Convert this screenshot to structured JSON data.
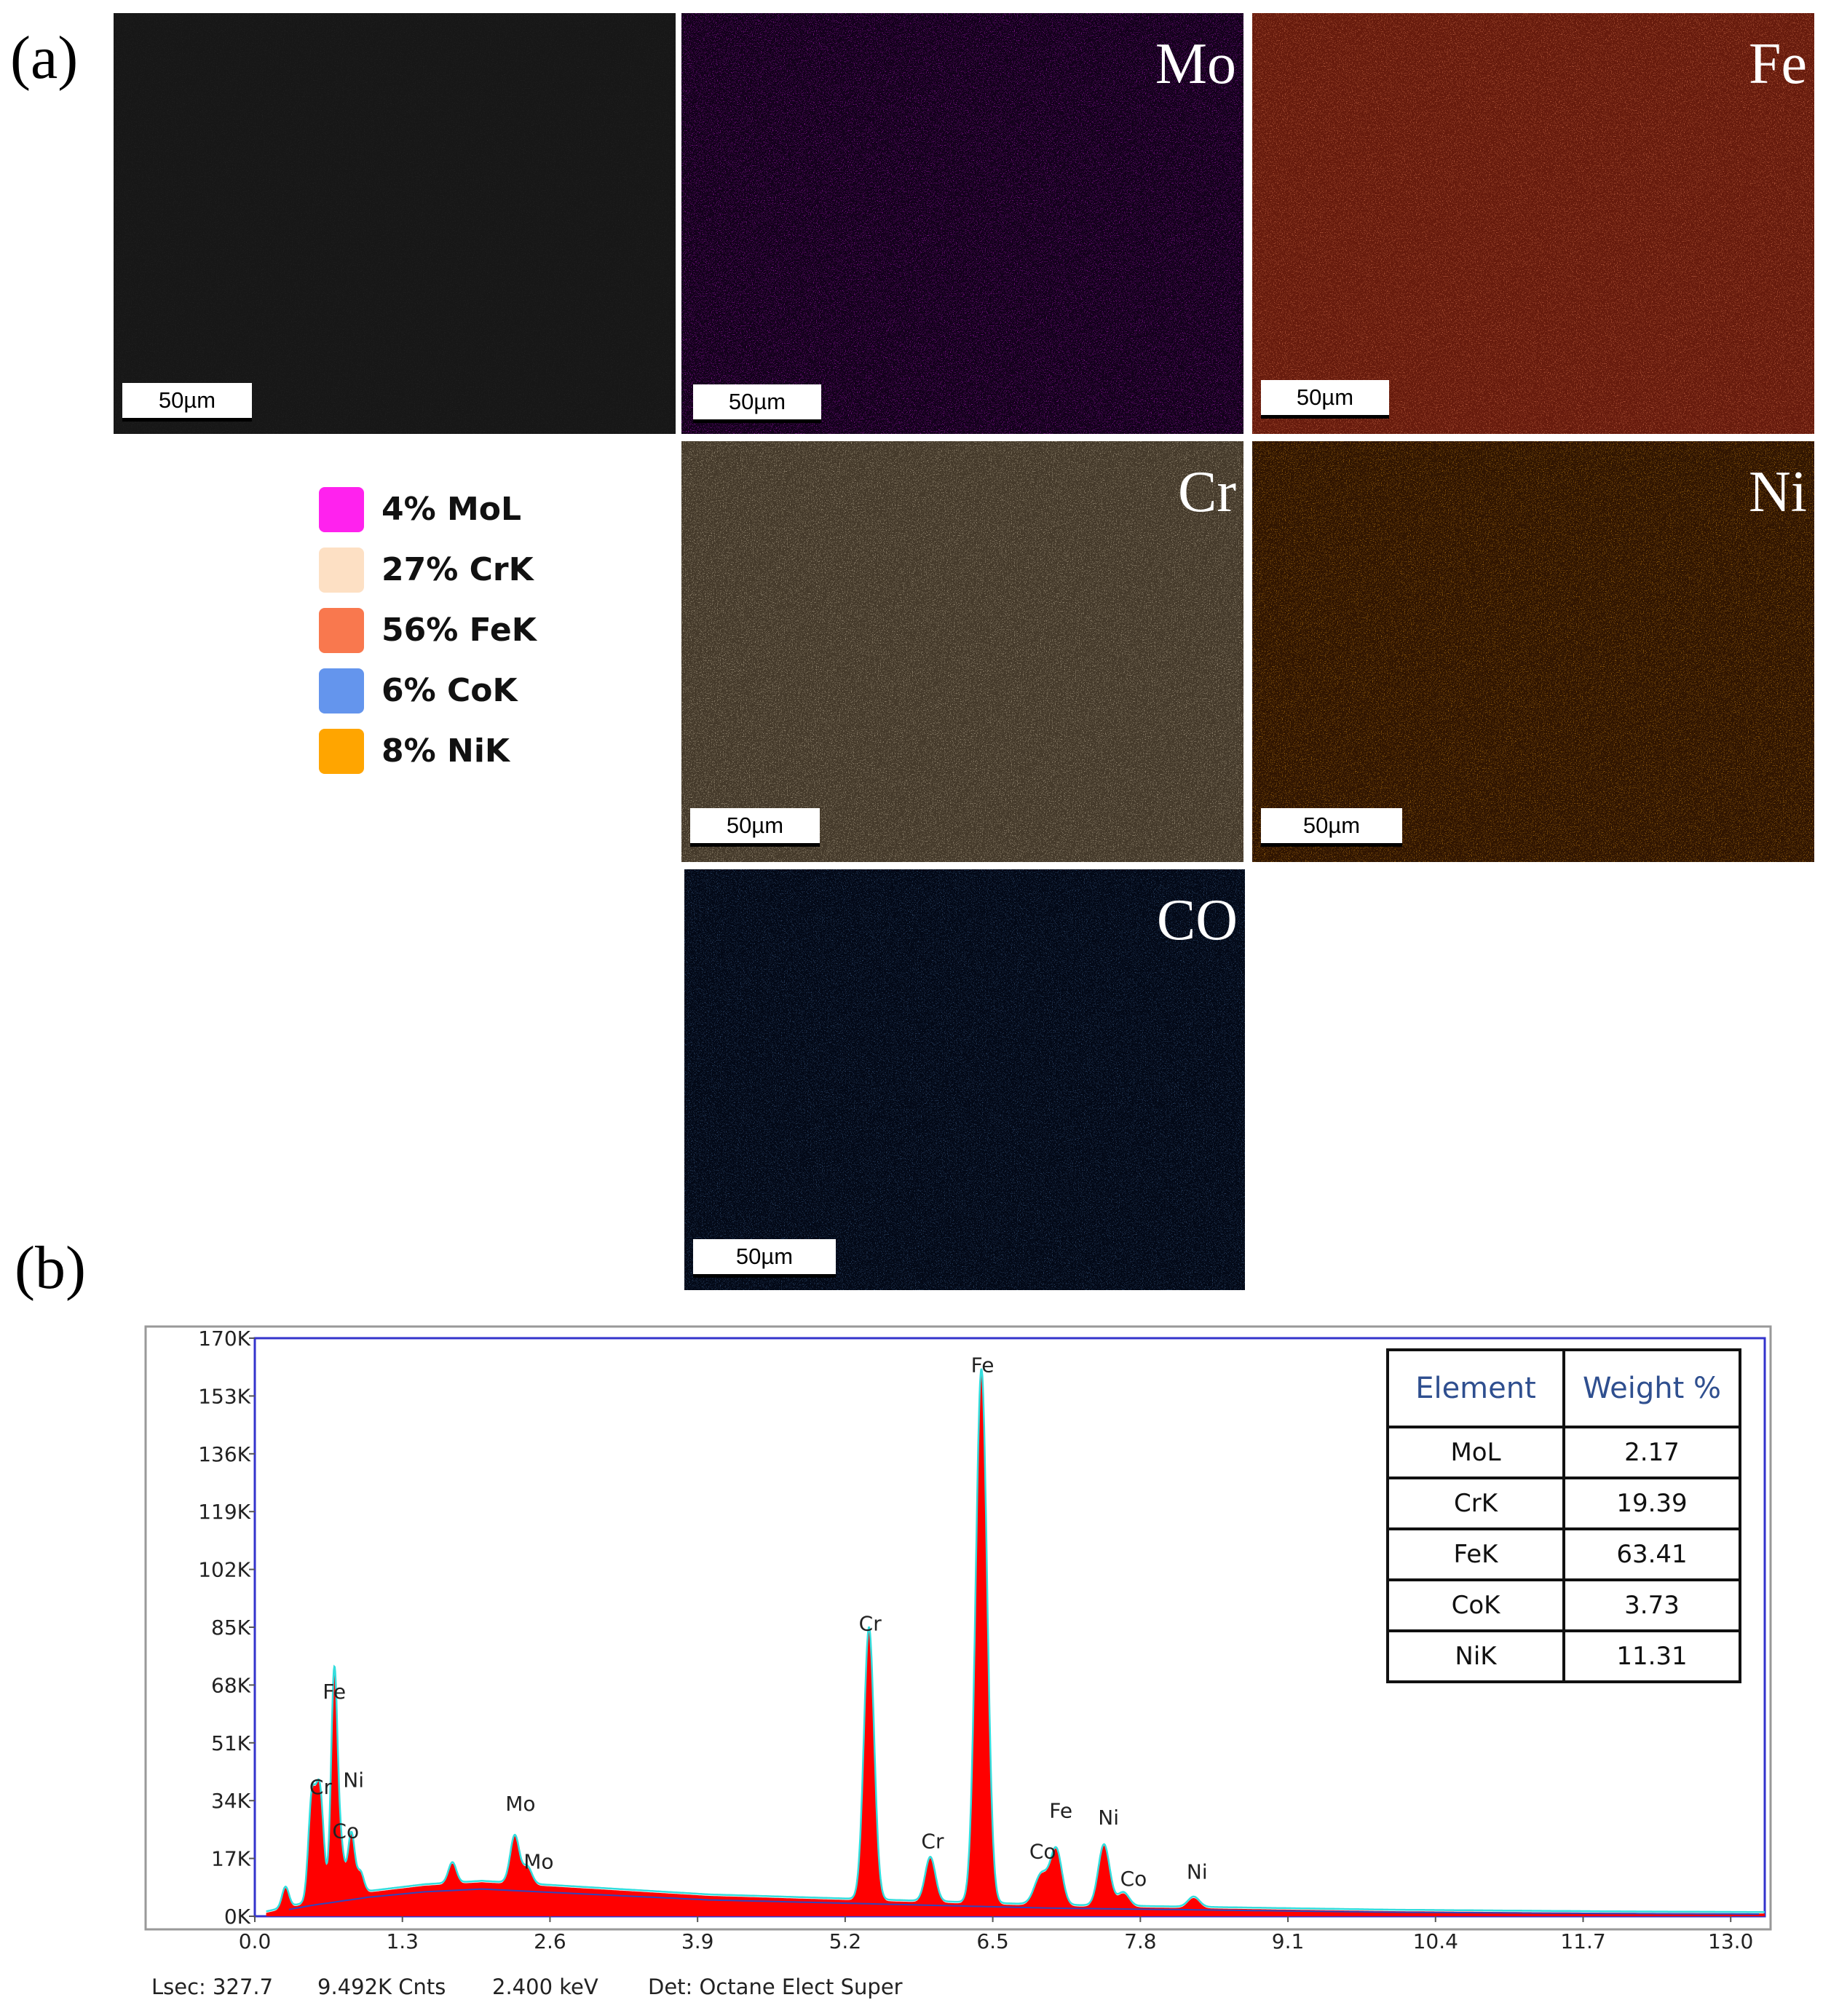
{
  "panel_a": {
    "letter": "(a)",
    "maps": [
      {
        "id": "sem",
        "label": "",
        "scale": "50µm",
        "base": "#4a4a4a",
        "hi": "#5e5e5e",
        "lo": "#3d3d3d"
      },
      {
        "id": "mo",
        "label": "Mo",
        "scale": "50µm",
        "base": "#3a0a4a",
        "hi": "#b21ac6",
        "lo": "#1a0422"
      },
      {
        "id": "fe",
        "label": "Fe",
        "scale": "50µm",
        "base": "#a4533a",
        "hi": "#d77653",
        "lo": "#7a3a26"
      },
      {
        "id": "cr",
        "label": "Cr",
        "scale": "50µm",
        "base": "#8a8070",
        "hi": "#c2b59c",
        "lo": "#5a5246"
      },
      {
        "id": "ni",
        "label": "Ni",
        "scale": "50µm",
        "base": "#5a3c0a",
        "hi": "#d08a14",
        "lo": "#3a2606"
      },
      {
        "id": "co",
        "label": "CO",
        "scale": "50µm",
        "base": "#16243c",
        "hi": "#3f6290",
        "lo": "#0c1628"
      }
    ],
    "legend": [
      {
        "text": "4% MoL",
        "color": "#ff22ee"
      },
      {
        "text": "27% CrK",
        "color": "#fde0c4"
      },
      {
        "text": "56% FeK",
        "color": "#f9784e"
      },
      {
        "text": "6% CoK",
        "color": "#6495ed"
      },
      {
        "text": "8% NiK",
        "color": "#ffa500"
      }
    ]
  },
  "panel_b": {
    "letter": "(b)",
    "table": {
      "headers": [
        "Element",
        "Weight %"
      ],
      "rows": [
        [
          "MoL",
          "2.17"
        ],
        [
          "CrK",
          "19.39"
        ],
        [
          "FeK",
          "63.41"
        ],
        [
          "CoK",
          "3.73"
        ],
        [
          "NiK",
          "11.31"
        ]
      ]
    },
    "footer": {
      "lsec": "Lsec: 327.7",
      "cnts": "9.492K Cnts",
      "kev": "2.400 keV",
      "det": "Det: Octane Elect Super"
    }
  },
  "chart_data": {
    "type": "area",
    "title": "",
    "xlabel": "",
    "ylabel": "",
    "xlim": [
      0,
      13.3
    ],
    "ylim": [
      0,
      170
    ],
    "x_ticks": [
      "0.0",
      "1.3",
      "2.6",
      "3.9",
      "5.2",
      "6.5",
      "7.8",
      "9.1",
      "10.4",
      "11.7",
      "13.0"
    ],
    "y_ticks": [
      "0K",
      "17K",
      "34K",
      "51K",
      "68K",
      "85K",
      "102K",
      "119K",
      "136K",
      "153K",
      "170K"
    ],
    "fill_color": "#ff0000",
    "line_color": "#33dddd",
    "axis_color": "#3333cc",
    "background_level": [
      [
        0.1,
        1
      ],
      [
        0.5,
        4
      ],
      [
        1.0,
        7
      ],
      [
        1.5,
        9
      ],
      [
        2.0,
        10
      ],
      [
        3.0,
        8
      ],
      [
        4.0,
        6
      ],
      [
        5.0,
        5
      ],
      [
        6.0,
        4
      ],
      [
        7.0,
        3
      ],
      [
        8.0,
        2.5
      ],
      [
        9.0,
        2
      ],
      [
        10.0,
        1.5
      ],
      [
        12.0,
        1
      ],
      [
        13.3,
        0.8
      ]
    ],
    "peaks": [
      {
        "x": 0.27,
        "y": 6,
        "w": 0.03
      },
      {
        "x": 0.5,
        "y": 28,
        "w": 0.03
      },
      {
        "x": 0.57,
        "y": 33,
        "w": 0.035
      },
      {
        "x": 0.7,
        "y": 66,
        "w": 0.028
      },
      {
        "x": 0.76,
        "y": 13,
        "w": 0.03
      },
      {
        "x": 0.85,
        "y": 18,
        "w": 0.03
      },
      {
        "x": 0.93,
        "y": 6,
        "w": 0.03
      },
      {
        "x": 1.74,
        "y": 6,
        "w": 0.035
      },
      {
        "x": 2.29,
        "y": 14,
        "w": 0.04
      },
      {
        "x": 2.4,
        "y": 5,
        "w": 0.04
      },
      {
        "x": 5.41,
        "y": 80,
        "w": 0.045
      },
      {
        "x": 5.95,
        "y": 13,
        "w": 0.045
      },
      {
        "x": 6.4,
        "y": 157,
        "w": 0.05
      },
      {
        "x": 6.93,
        "y": 9,
        "w": 0.06
      },
      {
        "x": 7.06,
        "y": 16,
        "w": 0.05
      },
      {
        "x": 7.48,
        "y": 18,
        "w": 0.05
      },
      {
        "x": 7.65,
        "y": 4,
        "w": 0.05
      },
      {
        "x": 8.27,
        "y": 3,
        "w": 0.05
      }
    ],
    "annotations": [
      {
        "text": "Fe",
        "x": 0.7,
        "y": 64
      },
      {
        "text": "Cr",
        "x": 0.58,
        "y": 36
      },
      {
        "text": "Ni",
        "x": 0.87,
        "y": 38
      },
      {
        "text": "Co",
        "x": 0.8,
        "y": 23
      },
      {
        "text": "Mo",
        "x": 2.34,
        "y": 31
      },
      {
        "text": "Mo",
        "x": 2.5,
        "y": 14
      },
      {
        "text": "Cr",
        "x": 5.42,
        "y": 84
      },
      {
        "text": "Cr",
        "x": 5.97,
        "y": 20
      },
      {
        "text": "Fe",
        "x": 6.41,
        "y": 160
      },
      {
        "text": "Fe",
        "x": 7.1,
        "y": 29
      },
      {
        "text": "Co",
        "x": 6.94,
        "y": 17
      },
      {
        "text": "Ni",
        "x": 7.52,
        "y": 27
      },
      {
        "text": "Co",
        "x": 7.74,
        "y": 9
      },
      {
        "text": "Ni",
        "x": 8.3,
        "y": 11
      }
    ]
  }
}
